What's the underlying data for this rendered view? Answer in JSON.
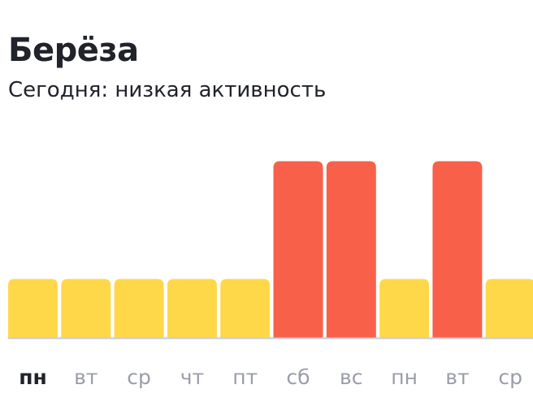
{
  "chart_data": {
    "type": "bar",
    "title": "Берёза",
    "subtitle": "Сегодня: низкая активность",
    "categories": [
      "пн",
      "вт",
      "ср",
      "чт",
      "пт",
      "сб",
      "вс",
      "пн",
      "вт",
      "ср"
    ],
    "values": [
      1,
      1,
      1,
      1,
      1,
      3,
      3,
      1,
      3,
      1
    ],
    "highlighted_index": 0,
    "ylim": [
      0,
      3
    ],
    "grid": false,
    "legend": "none",
    "xlabel": "",
    "ylabel": ""
  },
  "colors": {
    "low": "#ffd84a",
    "high": "#f8604a",
    "baseline": "#c8cad6",
    "label_active": "#21232b",
    "label_inactive": "#9a9da8"
  }
}
